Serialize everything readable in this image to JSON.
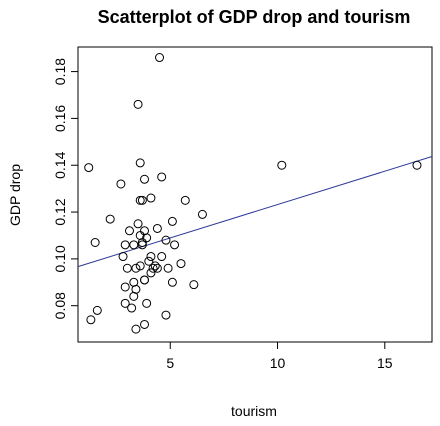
{
  "chart_data": {
    "type": "scatter",
    "title": "Scatterplot of GDP drop and tourism",
    "xlabel": "tourism",
    "ylabel": "GDP drop",
    "xlim": [
      0.7,
      17.2
    ],
    "ylim": [
      0.0645,
      0.1905
    ],
    "xticks": [
      5,
      10,
      15
    ],
    "yticks": [
      0.08,
      0.1,
      0.12,
      0.14,
      0.16,
      0.18
    ],
    "ytick_labels": [
      "0.08",
      "0.10",
      "0.12",
      "0.14",
      "0.16",
      "0.18"
    ],
    "grid": false,
    "fit_line": {
      "intercept": 0.0947,
      "slope": 0.00285,
      "color": "#2b3a9a"
    },
    "x": [
      4.5,
      3.5,
      1.2,
      2.7,
      3.6,
      4.6,
      3.8,
      1.5,
      2.2,
      3.6,
      3.7,
      4.1,
      5.7,
      6.5,
      10.2,
      16.5,
      3.1,
      3.8,
      4.4,
      3.5,
      5.1,
      3.6,
      3.7,
      3.9,
      2.9,
      3.3,
      4.8,
      5.2,
      2.8,
      3.7,
      4.1,
      4.0,
      4.6,
      5.5,
      3.6,
      4.2,
      4.3,
      3.0,
      4.1,
      4.4,
      3.4,
      4.9,
      3.8,
      3.8,
      5.1,
      6.1,
      3.3,
      2.9,
      3.4,
      3.3,
      3.9,
      2.9,
      3.2,
      1.6,
      4.8,
      1.3,
      3.8,
      3.4
    ],
    "y": [
      0.186,
      0.166,
      0.139,
      0.132,
      0.141,
      0.135,
      0.134,
      0.107,
      0.117,
      0.125,
      0.125,
      0.126,
      0.125,
      0.119,
      0.14,
      0.14,
      0.112,
      0.112,
      0.113,
      0.115,
      0.116,
      0.11,
      0.106,
      0.109,
      0.106,
      0.106,
      0.108,
      0.106,
      0.101,
      0.107,
      0.101,
      0.099,
      0.101,
      0.098,
      0.097,
      0.096,
      0.097,
      0.096,
      0.094,
      0.096,
      0.096,
      0.096,
      0.091,
      0.091,
      0.09,
      0.089,
      0.09,
      0.088,
      0.087,
      0.084,
      0.081,
      0.081,
      0.079,
      0.078,
      0.076,
      0.074,
      0.072,
      0.07
    ]
  }
}
